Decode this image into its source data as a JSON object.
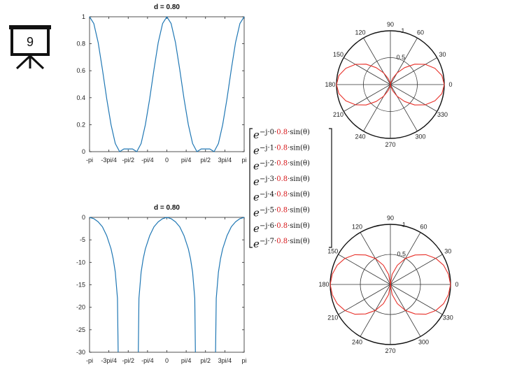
{
  "slide": {
    "number": "9",
    "icon": "presentation-board-icon"
  },
  "colors": {
    "line_blue": "#1f77b4",
    "polar_red": "#e8312a",
    "axis": "#262626",
    "grid": "#333333",
    "coef_red": "#d7191c"
  },
  "formula": {
    "base": "e",
    "prefix": "−j·",
    "mid": "·",
    "coef": "0.8",
    "suffix": "·sin(θ)",
    "indices": [
      "0",
      "1",
      "2",
      "3",
      "4",
      "5",
      "6",
      "7"
    ]
  },
  "chart_data": [
    {
      "type": "line",
      "title": "d = 0.80",
      "xlim": [
        -3.1416,
        3.1416
      ],
      "ylim": [
        0,
        1
      ],
      "x_tick_values": [
        -3.1416,
        -2.3562,
        -1.5708,
        -0.7854,
        0,
        0.7854,
        1.5708,
        2.3562,
        3.1416
      ],
      "x_tick_labels": [
        "-pi",
        "-3pi/4",
        "-pi/2",
        "-pi/4",
        "0",
        "pi/4",
        "pi/2",
        "3pi/4",
        "pi"
      ],
      "y_tick_values": [
        0,
        0.2,
        0.4,
        0.6,
        0.8,
        1
      ],
      "y_tick_labels": [
        "0",
        "0.2",
        "0.4",
        "0.6",
        "0.8",
        "1"
      ],
      "series": [
        {
          "x": [
            -3.1416,
            -2.9671,
            -2.7925,
            -2.618,
            -2.4435,
            -2.2689,
            -2.0944,
            -1.9199,
            -1.7453,
            -1.5708,
            -1.3963,
            -1.2217,
            -1.0472,
            -0.8727,
            -0.6981,
            -0.5236,
            -0.3491,
            -0.1745,
            0,
            0.1745,
            0.3491,
            0.5236,
            0.6981,
            0.8727,
            1.0472,
            1.2217,
            1.3963,
            1.5708,
            1.7453,
            1.9199,
            2.0944,
            2.2689,
            2.4435,
            2.618,
            2.7925,
            2.9671,
            3.1416
          ],
          "y": [
            1.0,
            0.95,
            0.81,
            0.61,
            0.39,
            0.2,
            0.06,
            0.0,
            0.02,
            0.02,
            0.02,
            0.0,
            0.06,
            0.2,
            0.39,
            0.61,
            0.81,
            0.95,
            1.0,
            0.95,
            0.81,
            0.61,
            0.39,
            0.2,
            0.06,
            0.0,
            0.02,
            0.02,
            0.02,
            0.0,
            0.06,
            0.2,
            0.39,
            0.61,
            0.81,
            0.95,
            1.0
          ]
        }
      ]
    },
    {
      "type": "line",
      "title": "d = 0.80",
      "xlim": [
        -3.1416,
        3.1416
      ],
      "ylim": [
        -30,
        0
      ],
      "x_tick_values": [
        -3.1416,
        -2.3562,
        -1.5708,
        -0.7854,
        0,
        0.7854,
        1.5708,
        2.3562,
        3.1416
      ],
      "x_tick_labels": [
        "-pi",
        "-3pi/4",
        "-pi/2",
        "-pi/4",
        "0",
        "pi/4",
        "pi/2",
        "3pi/4",
        "pi"
      ],
      "y_tick_values": [
        -30,
        -25,
        -20,
        -15,
        -10,
        -5,
        0
      ],
      "y_tick_labels": [
        "-30",
        "-25",
        "-20",
        "-15",
        "-10",
        "-5",
        "0"
      ],
      "series": [
        {
          "segments": [
            {
              "x": [
                -3.1416,
                -2.9671,
                -2.7925,
                -2.618,
                -2.4435,
                -2.2689,
                -2.1817,
                -2.0944,
                -2.0071,
                -1.98
              ],
              "y": [
                0,
                -0.3,
                -1.0,
                -2.1,
                -4.1,
                -7.0,
                -9.2,
                -12.2,
                -18.0,
                -30
              ]
            },
            {
              "x": [
                -1.16,
                -1.1345,
                -1.0472,
                -0.9599,
                -0.8727,
                -0.6981,
                -0.5236,
                -0.3491,
                -0.1745,
                0,
                0.1745,
                0.3491,
                0.5236,
                0.6981,
                0.8727,
                0.9599,
                1.0472,
                1.1345,
                1.16
              ],
              "y": [
                -30,
                -18.0,
                -12.2,
                -9.2,
                -7.0,
                -4.1,
                -2.1,
                -1.0,
                -0.3,
                0,
                -0.3,
                -1.0,
                -2.1,
                -4.1,
                -7.0,
                -9.2,
                -12.2,
                -18.0,
                -30
              ]
            },
            {
              "x": [
                1.98,
                2.0071,
                2.0944,
                2.1817,
                2.2689,
                2.4435,
                2.618,
                2.7925,
                2.9671,
                3.1416
              ],
              "y": [
                -30,
                -18.0,
                -12.2,
                -9.2,
                -7.0,
                -4.1,
                -2.1,
                -1.0,
                -0.3,
                0
              ]
            }
          ]
        }
      ]
    },
    {
      "type": "polar",
      "r_max": 1,
      "r_ticks": [
        0.5,
        1
      ],
      "r_tick_labels": [
        "0.5",
        "1"
      ],
      "angle_labels": [
        "0",
        "30",
        "60",
        "90",
        "120",
        "150",
        "180",
        "210",
        "240",
        "270",
        "300",
        "330"
      ],
      "series": [
        {
          "pattern": "cos^2(theta)",
          "theta_step_deg": 10,
          "r": [
            1.0,
            0.97,
            0.88,
            0.75,
            0.59,
            0.41,
            0.25,
            0.12,
            0.03,
            0.0,
            0.03,
            0.12,
            0.25,
            0.41,
            0.59,
            0.75,
            0.88,
            0.97,
            1.0,
            0.97,
            0.88,
            0.75,
            0.59,
            0.41,
            0.25,
            0.12,
            0.03,
            0.0,
            0.03,
            0.12,
            0.25,
            0.41,
            0.59,
            0.75,
            0.88,
            0.97
          ]
        }
      ]
    },
    {
      "type": "polar",
      "r_max": 1,
      "r_ticks": [
        0.5,
        1
      ],
      "r_tick_labels": [
        "0.5",
        "1"
      ],
      "angle_labels": [
        "0",
        "30",
        "60",
        "90",
        "120",
        "150",
        "180",
        "210",
        "240",
        "270",
        "300",
        "330"
      ],
      "series": [
        {
          "pattern": "|cos(theta)|",
          "theta_step_deg": 10,
          "r": [
            1.0,
            0.98,
            0.94,
            0.87,
            0.77,
            0.64,
            0.5,
            0.34,
            0.17,
            0.0,
            0.17,
            0.34,
            0.5,
            0.64,
            0.77,
            0.87,
            0.94,
            0.98,
            1.0,
            0.98,
            0.94,
            0.87,
            0.77,
            0.64,
            0.5,
            0.34,
            0.17,
            0.0,
            0.17,
            0.34,
            0.5,
            0.64,
            0.77,
            0.87,
            0.94,
            0.98
          ]
        }
      ]
    }
  ]
}
